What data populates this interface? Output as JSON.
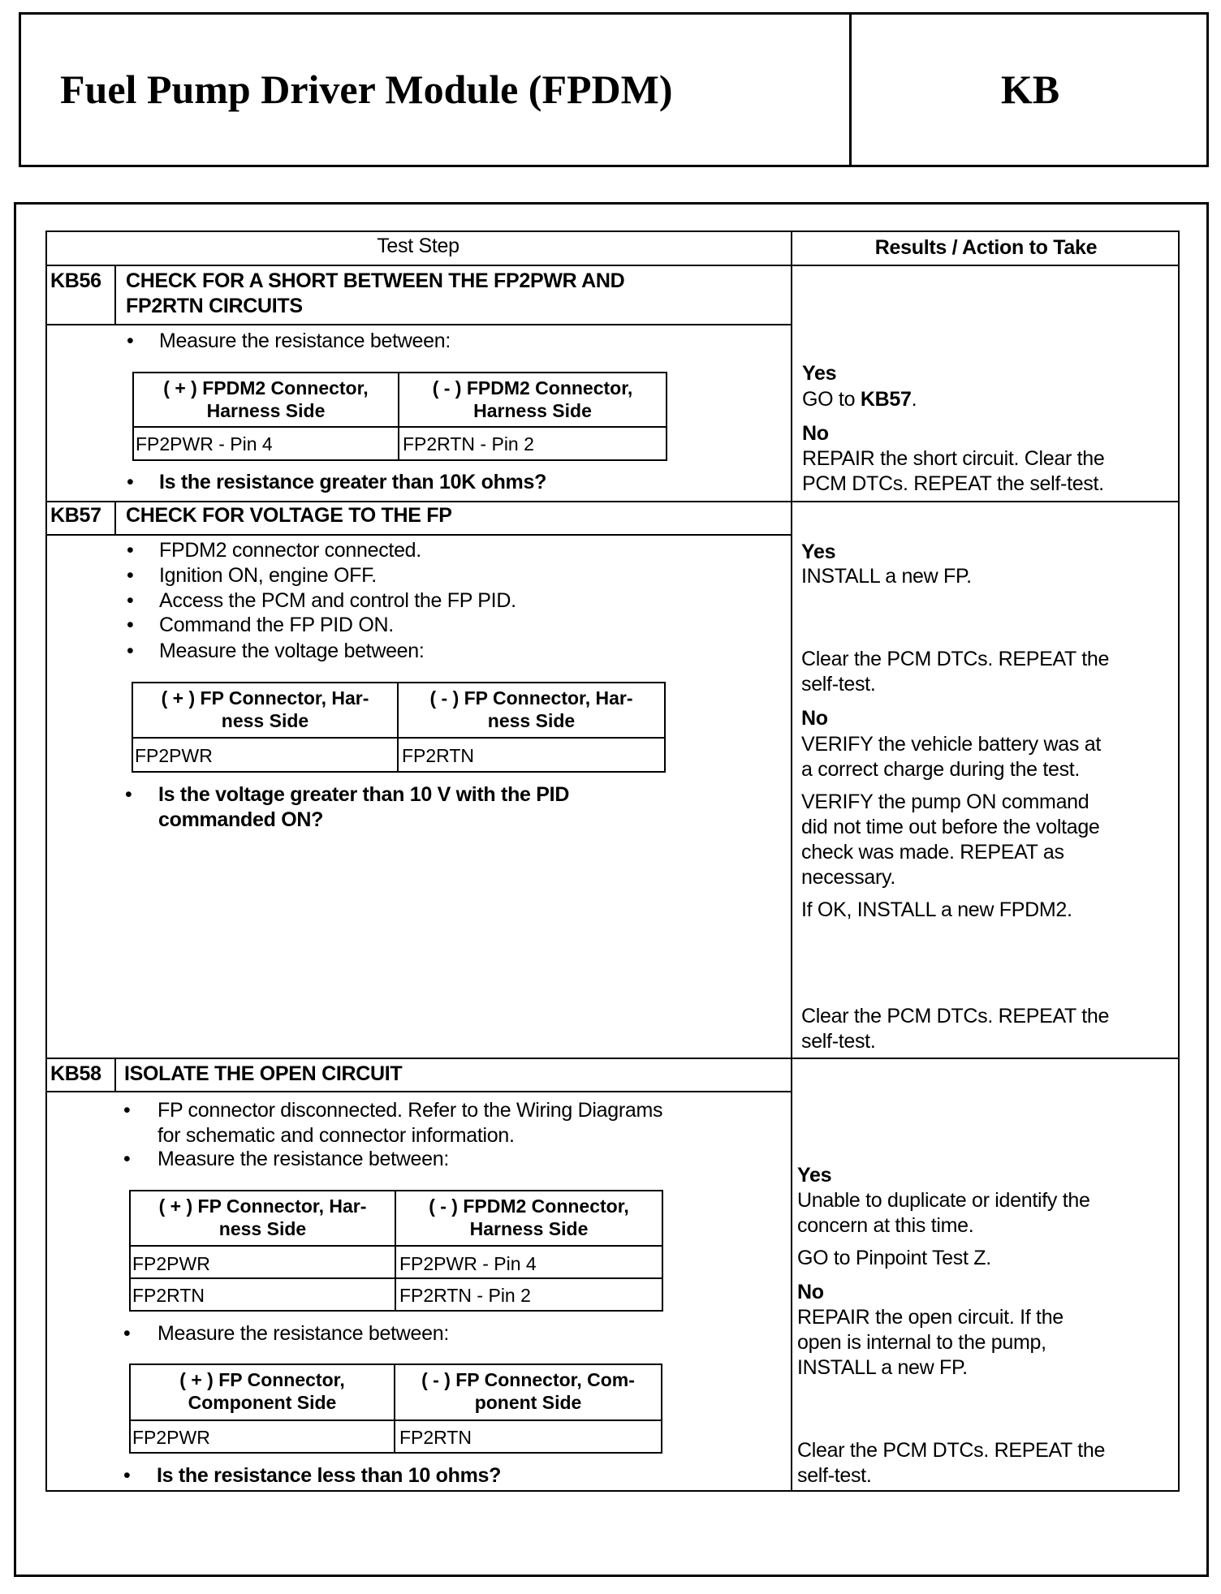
{
  "header": {
    "title": "Fuel Pump Driver Module (FPDM)",
    "code": "KB"
  },
  "table": {
    "col_test_step": "Test Step",
    "col_results": "Results / Action to Take"
  },
  "steps": [
    {
      "id": "KB56",
      "title": "CHECK FOR A SHORT BETWEEN THE FP2PWR AND\nFP2RTN CIRCUITS",
      "bullets": [
        "Measure the resistance between:"
      ],
      "meas": {
        "h1": "( + ) FPDM2 Connector,\nHarness Side",
        "h2": "( - ) FPDM2 Connector,\nHarness Side",
        "rows": [
          [
            "FP2PWR - Pin 4",
            "FP2RTN - Pin 2"
          ]
        ]
      },
      "question": "Is the resistance greater than 10K ohms?",
      "results": {
        "yes": "Yes",
        "yes_text": "GO to ",
        "yes_ref": "KB57",
        "yes_end": ".",
        "no": "No",
        "no_text": "REPAIR the short circuit. Clear the\nPCM DTCs. REPEAT the self-test."
      }
    },
    {
      "id": "KB57",
      "title": "CHECK FOR VOLTAGE TO THE FP",
      "bullets": [
        "FPDM2 connector connected.",
        "Ignition ON, engine OFF.",
        "Access the PCM and control the FP PID.",
        "Command the FP PID ON.",
        "Measure the voltage between:"
      ],
      "meas": {
        "h1": "( + ) FP Connector, Har-\nness Side",
        "h2": "( - ) FP Connector, Har-\nness Side",
        "rows": [
          [
            "FP2PWR",
            "FP2RTN"
          ]
        ]
      },
      "question": "Is the voltage greater than 10 V with the PID\ncommanded ON?",
      "results": {
        "yes": "Yes",
        "yes_text": "INSTALL a new FP.",
        "yes_clear": "Clear the PCM DTCs. REPEAT the\nself-test.",
        "no": "No",
        "no_text1": "VERIFY the vehicle battery was at\na correct charge during the test.",
        "no_text2": "VERIFY the pump ON command\ndid not time out before the voltage\ncheck was made. REPEAT as\nnecessary.",
        "no_text3": "If OK, INSTALL a new FPDM2.",
        "no_clear": "Clear the PCM DTCs. REPEAT the\nself-test."
      }
    },
    {
      "id": "KB58",
      "title": "ISOLATE THE OPEN CIRCUIT",
      "bullets": [
        "FP connector disconnected. Refer to the Wiring Diagrams\n for schematic and connector information.",
        "Measure the resistance between:",
        "Measure the resistance between:"
      ],
      "meas": {
        "h1": "( + ) FP Connector, Har-\nness Side",
        "h2": "( - ) FPDM2 Connector,\nHarness Side",
        "rows": [
          [
            "FP2PWR",
            "FP2PWR - Pin 4"
          ],
          [
            "FP2RTN",
            "FP2RTN - Pin 2"
          ]
        ]
      },
      "meas2": {
        "h1": "( + ) FP Connector,\nComponent Side",
        "h2": "( - ) FP Connector, Com-\nponent Side",
        "rows": [
          [
            "FP2PWR",
            "FP2RTN"
          ]
        ]
      },
      "question": "Is the resistance less than 10 ohms?",
      "results": {
        "yes": "Yes",
        "yes_text1": "Unable to duplicate or identify the\nconcern at this time.",
        "yes_text2": "GO to Pinpoint Test Z.",
        "no": "No",
        "no_text": "REPAIR the open circuit. If the\nopen is internal to the pump,\nINSTALL a new FP.",
        "no_clear": "Clear the PCM DTCs. REPEAT the\nself-test."
      }
    }
  ]
}
